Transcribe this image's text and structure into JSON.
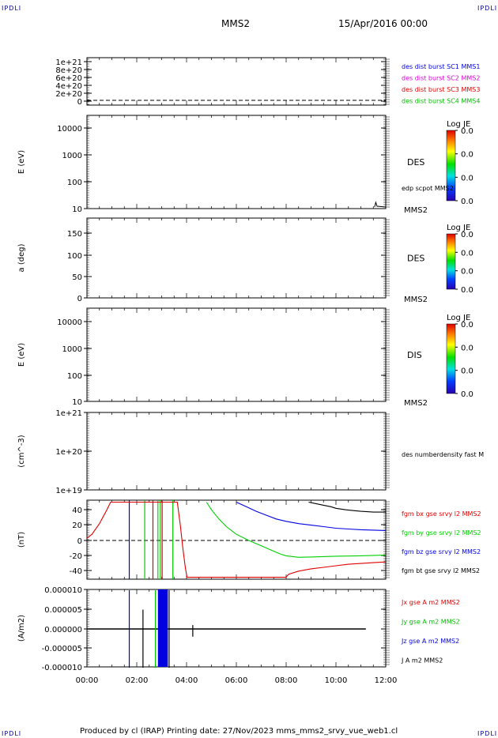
{
  "corner_tags": {
    "tl": "IPDLI",
    "tr": "IPDLI",
    "bl": "IPDLI",
    "br": "IPDLI"
  },
  "header": {
    "spacecraft": "MMS2",
    "date": "15/Apr/2016 00:00"
  },
  "footer": {
    "text": "Produced by cl (IRAP)   Printing date: 27/Nov/2023   mms_mms2_srvy_vue_web1.cl"
  },
  "colors": {
    "red": "#e00000",
    "green": "#00d000",
    "blue": "#0000e0",
    "magenta": "#e000e0",
    "black": "#000000"
  },
  "chart_data": [
    {
      "type": "line",
      "ylabel": "",
      "y_ticks": [
        "1e+21",
        "8e+20",
        "6e+20",
        "4e+20",
        "2e+20",
        "0"
      ],
      "ylim": [
        0,
        1.1e+21
      ],
      "legend": [
        {
          "text": "des dist burst SC1 MMS1",
          "color": "#0000e0"
        },
        {
          "text": "des dist burst SC2 MMS2",
          "color": "#e000e0"
        },
        {
          "text": "des dist burst SC3 MMS3",
          "color": "#e00000"
        },
        {
          "text": "des dist burst SC4 MMS4",
          "color": "#00c000"
        }
      ],
      "dashed_zero": true
    },
    {
      "type": "heatmap",
      "ylabel": "E (eV)",
      "y_ticks": [
        "10000",
        "1000",
        "100",
        "10"
      ],
      "scale": "log",
      "label": "DES",
      "sublabel": "MMS2",
      "line_label": "edp scpot MMS2",
      "colorbar": {
        "title": "Log JE",
        "ticks": [
          "0.0",
          "0.0",
          "0.0",
          "0.0"
        ]
      }
    },
    {
      "type": "heatmap",
      "ylabel": "a (deg)",
      "y_ticks": [
        "150",
        "100",
        "50",
        "0"
      ],
      "ylim": [
        0,
        180
      ],
      "label": "DES",
      "sublabel": "MMS2",
      "colorbar": {
        "title": "Log JE",
        "ticks": [
          "0.0",
          "0.0",
          "0.0",
          "0.0"
        ]
      }
    },
    {
      "type": "heatmap",
      "ylabel": "E (eV)",
      "y_ticks": [
        "10000",
        "1000",
        "100",
        "10"
      ],
      "scale": "log",
      "label": "DIS",
      "sublabel": "MMS2",
      "colorbar": {
        "title": "Log JE",
        "ticks": [
          "0.0",
          "0.0",
          "0.0",
          "0.0"
        ]
      }
    },
    {
      "type": "line",
      "ylabel": "(cm^-3)",
      "y_ticks": [
        "1e+21",
        "1e+20",
        "1e+19"
      ],
      "scale": "log",
      "legend": [
        {
          "text": "des numberdensity fast M",
          "color": "#000000"
        }
      ]
    },
    {
      "type": "line",
      "ylabel": "(nT)",
      "y_ticks": [
        "40",
        "20",
        "0",
        "-20",
        "-40"
      ],
      "ylim": [
        -48,
        50
      ],
      "dashed_zero": true,
      "legend": [
        {
          "text": "fgm bx gse srvy l2 MMS2",
          "color": "#e00000"
        },
        {
          "text": "fgm by gse srvy l2 MMS2",
          "color": "#00d000"
        },
        {
          "text": "fgm bz gse srvy l2 MMS2",
          "color": "#0000e0"
        },
        {
          "text": "fgm bt gse srvy l2 MMS2",
          "color": "#000000"
        }
      ],
      "series": [
        {
          "color": "#e00000",
          "points": [
            [
              0,
              3
            ],
            [
              0.2,
              8
            ],
            [
              0.5,
              22
            ],
            [
              0.8,
              40
            ],
            [
              0.95,
              50
            ],
            [
              3.63,
              50
            ],
            [
              3.75,
              20
            ],
            [
              3.85,
              -10
            ],
            [
              3.95,
              -35
            ],
            [
              4.02,
              -48
            ],
            [
              8,
              -48
            ],
            [
              8.1,
              -44
            ],
            [
              8.5,
              -40
            ],
            [
              9,
              -37
            ],
            [
              9.5,
              -35
            ],
            [
              10,
              -33
            ],
            [
              10.5,
              -31
            ],
            [
              11,
              -30
            ],
            [
              11.5,
              -29
            ],
            [
              12,
              -28
            ]
          ]
        },
        {
          "color": "#00d000",
          "points": [
            [
              4.8,
              50
            ],
            [
              5,
              40
            ],
            [
              5.3,
              28
            ],
            [
              5.6,
              18
            ],
            [
              6,
              8
            ],
            [
              6.5,
              0
            ],
            [
              7,
              -7
            ],
            [
              7.5,
              -14
            ],
            [
              7.8,
              -18
            ],
            [
              8,
              -20
            ],
            [
              8.5,
              -22
            ],
            [
              9,
              -21.5
            ],
            [
              9.5,
              -21
            ],
            [
              10,
              -20.5
            ],
            [
              11,
              -20
            ],
            [
              12,
              -19
            ]
          ]
        },
        {
          "color": "#0000e0",
          "points": [
            [
              6,
              50
            ],
            [
              6.4,
              44
            ],
            [
              6.8,
              38
            ],
            [
              7.2,
              33
            ],
            [
              7.6,
              28
            ],
            [
              8,
              25
            ],
            [
              8.5,
              22
            ],
            [
              9,
              20
            ],
            [
              9.5,
              18
            ],
            [
              10,
              16
            ],
            [
              10.5,
              15
            ],
            [
              11,
              14
            ],
            [
              11.5,
              13.5
            ],
            [
              12,
              13
            ]
          ]
        },
        {
          "color": "#000000",
          "points": [
            [
              8.9,
              50
            ],
            [
              9.2,
              48
            ],
            [
              9.5,
              46
            ],
            [
              9.8,
              44
            ],
            [
              10,
              42
            ],
            [
              10.4,
              40
            ],
            [
              10.7,
              39
            ],
            [
              11,
              38
            ],
            [
              11.5,
              37
            ],
            [
              12,
              37
            ]
          ]
        }
      ],
      "spikes": [
        {
          "x": 1.7,
          "color": "#0000e0"
        },
        {
          "x": 2.32,
          "color": "#00d000"
        },
        {
          "x": 2.65,
          "color": "#e00000"
        },
        {
          "x": 2.85,
          "color": "#00d000"
        },
        {
          "x": 2.95,
          "color": "#00d000"
        },
        {
          "x": 3.02,
          "color": "#e00000"
        },
        {
          "x": 3.45,
          "color": "#00d000"
        }
      ]
    },
    {
      "type": "line",
      "ylabel": "(A/m2)",
      "y_ticks": [
        "0.000010",
        "0.000005",
        "0.000000",
        "-0.000005",
        "-0.000010"
      ],
      "ylim": [
        -1e-05,
        1e-05
      ],
      "legend": [
        {
          "text": "Jx gse A m2 MMS2",
          "color": "#e00000"
        },
        {
          "text": "Jy gse A m2 MMS2",
          "color": "#00c000"
        },
        {
          "text": "Jz gse A m2 MMS2",
          "color": "#0000e0"
        },
        {
          "text": "J A m2 MMS2",
          "color": "#000000"
        }
      ],
      "baseline_end": 11.2,
      "spikes": [
        {
          "x": 1.7,
          "color": "#0000e0",
          "lo": -1e-05,
          "hi": 1e-05
        },
        {
          "x": 2.25,
          "color": "#000000",
          "lo": -1e-05,
          "hi": 5e-06
        },
        {
          "x": 2.75,
          "color": "#00c000",
          "lo": -1e-05,
          "hi": 1e-05
        },
        {
          "x": 3.3,
          "color": "#000000",
          "lo": -1e-05,
          "hi": 1e-05
        },
        {
          "x": 4.25,
          "color": "#000000",
          "lo": -2e-06,
          "hi": 1e-06
        }
      ],
      "bursts": [
        {
          "from": 2.85,
          "to": 3.25,
          "color": "#0000e0"
        }
      ]
    }
  ],
  "x_axis": {
    "ticks": [
      "00:00",
      "02:00",
      "04:00",
      "06:00",
      "08:00",
      "10:00",
      "12:00"
    ],
    "range": [
      0,
      12
    ]
  }
}
